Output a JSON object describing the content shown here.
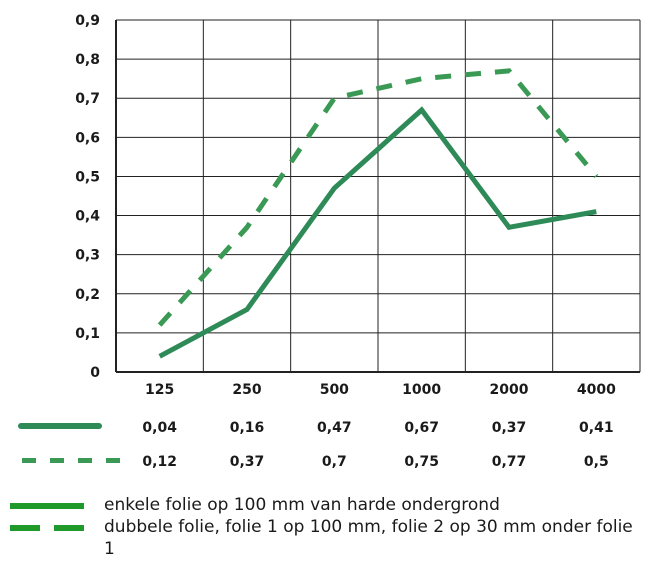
{
  "chart_data": {
    "type": "line",
    "categories": [
      "125",
      "250",
      "500",
      "1000",
      "2000",
      "4000"
    ],
    "ylim": [
      0,
      0.9
    ],
    "yticks": [
      "0",
      "0,1",
      "0,2",
      "0,3",
      "0,4",
      "0,5",
      "0,6",
      "0,7",
      "0,8",
      "0,9"
    ],
    "grid": true,
    "series": [
      {
        "name": "enkele folie op 100 mm van harde ondergrond",
        "style": "solid",
        "color": "#2e8b57",
        "values": [
          0.04,
          0.16,
          0.47,
          0.67,
          0.37,
          0.41
        ],
        "labels": [
          "0,04",
          "0,16",
          "0,47",
          "0,67",
          "0,37",
          "0,41"
        ]
      },
      {
        "name": "dubbele folie, folie 1 op 100 mm, folie 2 op 30 mm onder folie 1",
        "style": "dashed",
        "color": "#2e8b57",
        "values": [
          0.12,
          0.37,
          0.7,
          0.75,
          0.77,
          0.5
        ],
        "labels": [
          "0,12",
          "0,37",
          "0,7",
          "0,75",
          "0,77",
          "0,5"
        ]
      }
    ],
    "legend_position": "bottom"
  },
  "legend": {
    "item1": "enkele folie op 100 mm van harde ondergrond",
    "item2": "dubbele folie, folie 1 op 100 mm, folie 2 op 30 mm onder folie 1"
  }
}
